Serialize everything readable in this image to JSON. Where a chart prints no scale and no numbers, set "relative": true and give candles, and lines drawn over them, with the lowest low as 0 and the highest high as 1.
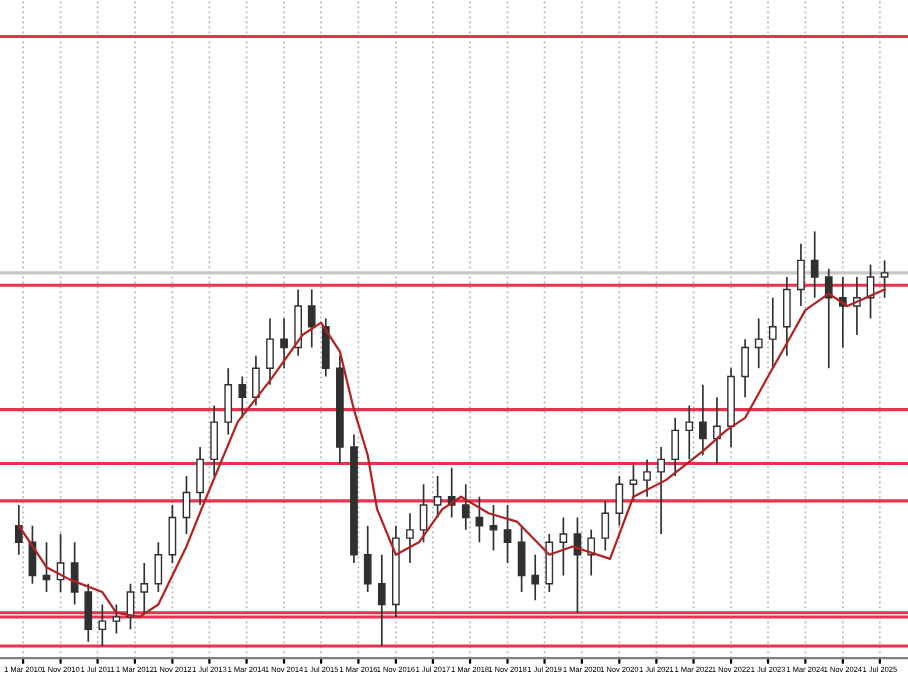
{
  "chart_data": {
    "type": "candlestick",
    "relative": true,
    "tick_labels": "x",
    "grid": "x",
    "legend": false,
    "xlim": [
      "2009-10",
      "2026-01"
    ],
    "xticks": [
      {
        "value": "2010-03-01",
        "label": "1 Mar 2010"
      },
      {
        "value": "2010-11-01",
        "label": "1 Nov 2010"
      },
      {
        "value": "2011-07-01",
        "label": "1 Jul 2011"
      },
      {
        "value": "2012-03-01",
        "label": "1 Mar 2012"
      },
      {
        "value": "2012-11-01",
        "label": "1 Nov 2012"
      },
      {
        "value": "2013-07-01",
        "label": "1 Jul 2013"
      },
      {
        "value": "2014-03-01",
        "label": "1 Mar 2014"
      },
      {
        "value": "2014-11-01",
        "label": "1 Nov 2014"
      },
      {
        "value": "2015-07-01",
        "label": "1 Jul 2015"
      },
      {
        "value": "2016-03-01",
        "label": "1 Mar 2016"
      },
      {
        "value": "2016-11-01",
        "label": "1 Nov 2016"
      },
      {
        "value": "2017-07-01",
        "label": "1 Jul 2017"
      },
      {
        "value": "2018-03-01",
        "label": "1 Mar 2018"
      },
      {
        "value": "2018-11-01",
        "label": "1 Nov 2018"
      },
      {
        "value": "2019-07-01",
        "label": "1 Jul 2019"
      },
      {
        "value": "2020-03-01",
        "label": "1 Mar 2020"
      },
      {
        "value": "2020-11-01",
        "label": "1 Nov 2020"
      },
      {
        "value": "2021-07-01",
        "label": "1 Jul 2021"
      },
      {
        "value": "2022-03-01",
        "label": "1 Mar 2022"
      },
      {
        "value": "2022-11-01",
        "label": "1 Nov 2022"
      },
      {
        "value": "2023-07-01",
        "label": "1 Jul 2023"
      },
      {
        "value": "2024-03-01",
        "label": "1 Mar 2024"
      },
      {
        "value": "2024-11-01",
        "label": "1 Nov 2024"
      },
      {
        "value": "2025-07-01",
        "label": "1 Jul 2025"
      }
    ],
    "ref_lines": [
      {
        "axis": "y",
        "value": 1.47,
        "color": "#e8324f"
      },
      {
        "axis": "y",
        "value": 0.9,
        "color": "#c8c8c8"
      },
      {
        "axis": "y",
        "value": 0.87,
        "color": "#e8324f"
      },
      {
        "axis": "y",
        "value": 0.57,
        "color": "#e8324f"
      },
      {
        "axis": "y",
        "value": 0.44,
        "color": "#e8324f"
      },
      {
        "axis": "y",
        "value": 0.35,
        "color": "#e8324f"
      },
      {
        "axis": "y",
        "value": 0.08,
        "color": "#e8324f"
      },
      {
        "axis": "y",
        "value": 0.07,
        "color": "#e8324f"
      },
      {
        "axis": "y",
        "value": 0.0,
        "color": "#e8324f"
      }
    ],
    "series": [
      {
        "color": "#303030",
        "x": [
          "2010-02",
          "2010-05",
          "2010-08",
          "2010-11",
          "2011-02",
          "2011-05",
          "2011-08",
          "2011-11",
          "2012-02",
          "2012-05",
          "2012-08",
          "2012-11",
          "2013-02",
          "2013-05",
          "2013-08",
          "2013-11",
          "2014-02",
          "2014-05",
          "2014-08",
          "2014-11",
          "2015-02",
          "2015-05",
          "2015-08",
          "2015-11",
          "2016-02",
          "2016-05",
          "2016-08",
          "2016-11",
          "2017-02",
          "2017-05",
          "2017-08",
          "2017-11",
          "2018-02",
          "2018-05",
          "2018-08",
          "2018-11",
          "2019-02",
          "2019-05",
          "2019-08",
          "2019-11",
          "2020-02",
          "2020-05",
          "2020-08",
          "2020-11",
          "2021-02",
          "2021-05",
          "2021-08",
          "2021-11",
          "2022-02",
          "2022-05",
          "2022-08",
          "2022-11",
          "2023-02",
          "2023-05",
          "2023-08",
          "2023-11",
          "2024-02",
          "2024-05",
          "2024-08",
          "2024-11",
          "2025-02",
          "2025-05",
          "2025-08"
        ],
        "ohlc": [
          [
            0.29,
            0.34,
            0.22,
            0.25
          ],
          [
            0.25,
            0.29,
            0.15,
            0.17
          ],
          [
            0.17,
            0.25,
            0.13,
            0.16
          ],
          [
            0.16,
            0.27,
            0.13,
            0.2
          ],
          [
            0.2,
            0.25,
            0.1,
            0.13
          ],
          [
            0.13,
            0.15,
            0.01,
            0.04
          ],
          [
            0.04,
            0.1,
            0.0,
            0.06
          ],
          [
            0.06,
            0.1,
            0.03,
            0.07
          ],
          [
            0.07,
            0.15,
            0.04,
            0.13
          ],
          [
            0.13,
            0.2,
            0.08,
            0.15
          ],
          [
            0.15,
            0.25,
            0.13,
            0.22
          ],
          [
            0.22,
            0.34,
            0.2,
            0.31
          ],
          [
            0.31,
            0.41,
            0.27,
            0.37
          ],
          [
            0.37,
            0.48,
            0.34,
            0.45
          ],
          [
            0.45,
            0.58,
            0.41,
            0.54
          ],
          [
            0.54,
            0.67,
            0.51,
            0.63
          ],
          [
            0.63,
            0.65,
            0.55,
            0.6
          ],
          [
            0.6,
            0.7,
            0.58,
            0.67
          ],
          [
            0.67,
            0.79,
            0.63,
            0.74
          ],
          [
            0.74,
            0.79,
            0.67,
            0.72
          ],
          [
            0.72,
            0.86,
            0.7,
            0.82
          ],
          [
            0.82,
            0.86,
            0.72,
            0.77
          ],
          [
            0.77,
            0.79,
            0.65,
            0.67
          ],
          [
            0.67,
            0.7,
            0.44,
            0.48
          ],
          [
            0.48,
            0.51,
            0.2,
            0.22
          ],
          [
            0.22,
            0.29,
            0.13,
            0.15
          ],
          [
            0.15,
            0.22,
            0.0,
            0.1
          ],
          [
            0.1,
            0.29,
            0.07,
            0.26
          ],
          [
            0.26,
            0.32,
            0.2,
            0.28
          ],
          [
            0.28,
            0.39,
            0.25,
            0.34
          ],
          [
            0.34,
            0.41,
            0.31,
            0.36
          ],
          [
            0.36,
            0.43,
            0.31,
            0.34
          ],
          [
            0.34,
            0.39,
            0.28,
            0.31
          ],
          [
            0.31,
            0.36,
            0.25,
            0.29
          ],
          [
            0.29,
            0.34,
            0.23,
            0.28
          ],
          [
            0.28,
            0.34,
            0.2,
            0.25
          ],
          [
            0.25,
            0.29,
            0.13,
            0.17
          ],
          [
            0.17,
            0.22,
            0.11,
            0.15
          ],
          [
            0.15,
            0.27,
            0.13,
            0.25
          ],
          [
            0.25,
            0.31,
            0.17,
            0.27
          ],
          [
            0.27,
            0.31,
            0.08,
            0.22
          ],
          [
            0.22,
            0.28,
            0.17,
            0.26
          ],
          [
            0.26,
            0.35,
            0.23,
            0.32
          ],
          [
            0.32,
            0.41,
            0.29,
            0.39
          ],
          [
            0.39,
            0.44,
            0.35,
            0.4
          ],
          [
            0.4,
            0.45,
            0.36,
            0.42
          ],
          [
            0.42,
            0.48,
            0.27,
            0.45
          ],
          [
            0.45,
            0.55,
            0.41,
            0.52
          ],
          [
            0.52,
            0.58,
            0.45,
            0.54
          ],
          [
            0.54,
            0.63,
            0.46,
            0.5
          ],
          [
            0.5,
            0.6,
            0.44,
            0.53
          ],
          [
            0.53,
            0.67,
            0.48,
            0.65
          ],
          [
            0.65,
            0.74,
            0.6,
            0.72
          ],
          [
            0.72,
            0.79,
            0.67,
            0.74
          ],
          [
            0.74,
            0.84,
            0.67,
            0.77
          ],
          [
            0.77,
            0.89,
            0.7,
            0.86
          ],
          [
            0.86,
            0.97,
            0.82,
            0.93
          ],
          [
            0.93,
            1.0,
            0.84,
            0.89
          ],
          [
            0.89,
            0.91,
            0.67,
            0.84
          ],
          [
            0.84,
            0.89,
            0.72,
            0.82
          ],
          [
            0.82,
            0.89,
            0.75,
            0.84
          ],
          [
            0.84,
            0.92,
            0.79,
            0.89
          ],
          [
            0.89,
            0.93,
            0.84,
            0.9
          ]
        ]
      },
      {
        "type": "line",
        "color": "#b22222",
        "line_style": "solid",
        "x": [
          "2010-02",
          "2010-08",
          "2011-01",
          "2011-08",
          "2011-11",
          "2012-04",
          "2012-08",
          "2013-02",
          "2013-06",
          "2014-01",
          "2014-08",
          "2015-03",
          "2015-07",
          "2015-11",
          "2016-02",
          "2016-05",
          "2016-07",
          "2016-11",
          "2017-04",
          "2017-09",
          "2018-01",
          "2018-07",
          "2019-01",
          "2019-08",
          "2020-01",
          "2020-09",
          "2021-02",
          "2021-09",
          "2022-05",
          "2022-10",
          "2023-02",
          "2023-07",
          "2023-11",
          "2024-03",
          "2024-08",
          "2024-12",
          "2025-04",
          "2025-08"
        ],
        "values": [
          0.29,
          0.19,
          0.16,
          0.13,
          0.08,
          0.07,
          0.1,
          0.24,
          0.35,
          0.54,
          0.64,
          0.75,
          0.78,
          0.71,
          0.57,
          0.46,
          0.33,
          0.22,
          0.25,
          0.33,
          0.36,
          0.32,
          0.3,
          0.22,
          0.24,
          0.21,
          0.36,
          0.4,
          0.47,
          0.52,
          0.55,
          0.65,
          0.73,
          0.81,
          0.85,
          0.82,
          0.84,
          0.86
        ]
      }
    ]
  }
}
